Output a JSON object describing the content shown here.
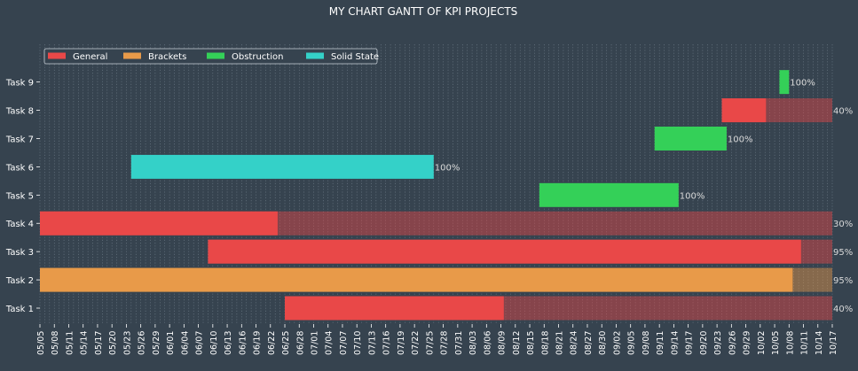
{
  "chart_data": {
    "type": "gantt",
    "title": "MY CHART GANTT OF KPI PROJECTS",
    "xlabel": "",
    "ylabel": "",
    "x_range": [
      "05/05",
      "10/17"
    ],
    "x_ticks": [
      "05/05",
      "05/08",
      "05/11",
      "05/14",
      "05/17",
      "05/20",
      "05/23",
      "05/26",
      "05/29",
      "06/01",
      "06/04",
      "06/07",
      "06/10",
      "06/13",
      "06/16",
      "06/19",
      "06/22",
      "06/25",
      "06/28",
      "07/01",
      "07/04",
      "07/07",
      "07/10",
      "07/13",
      "07/16",
      "07/19",
      "07/22",
      "07/25",
      "07/28",
      "07/31",
      "08/03",
      "08/06",
      "08/09",
      "08/12",
      "08/15",
      "08/18",
      "08/21",
      "08/24",
      "08/27",
      "08/30",
      "09/02",
      "09/05",
      "09/08",
      "09/11",
      "09/14",
      "09/17",
      "09/20",
      "09/23",
      "09/26",
      "09/29",
      "10/02",
      "10/05",
      "10/08",
      "10/11",
      "10/14",
      "10/17"
    ],
    "grid": true,
    "legend_position": "top-left",
    "legend": [
      {
        "name": "General",
        "color": "#e94848"
      },
      {
        "name": "Brackets",
        "color": "#e89a49"
      },
      {
        "name": "Obstruction",
        "color": "#34d058"
      },
      {
        "name": "Solid State",
        "color": "#34d1c8"
      }
    ],
    "tasks": [
      {
        "name": "Task 1",
        "department": "General",
        "start": "06/25",
        "end": "10/17",
        "completion": 40,
        "label": "40%"
      },
      {
        "name": "Task 2",
        "department": "Brackets",
        "start": "05/05",
        "end": "10/17",
        "completion": 95,
        "label": "95%"
      },
      {
        "name": "Task 3",
        "department": "General",
        "start": "06/09",
        "end": "10/17",
        "completion": 95,
        "label": "95%"
      },
      {
        "name": "Task 4",
        "department": "General",
        "start": "05/05",
        "end": "10/17",
        "completion": 30,
        "label": "30%"
      },
      {
        "name": "Task 5",
        "department": "Obstruction",
        "start": "08/17",
        "end": "09/15",
        "completion": 100,
        "label": "100%"
      },
      {
        "name": "Task 6",
        "department": "Solid State",
        "start": "05/24",
        "end": "07/26",
        "completion": 100,
        "label": "100%"
      },
      {
        "name": "Task 7",
        "department": "Obstruction",
        "start": "09/10",
        "end": "09/25",
        "completion": 100,
        "label": "100%"
      },
      {
        "name": "Task 8",
        "department": "General",
        "start": "09/24",
        "end": "10/17",
        "completion": 40,
        "label": "40%"
      },
      {
        "name": "Task 9",
        "department": "Obstruction",
        "start": "10/06",
        "end": "10/08",
        "completion": 100,
        "label": "100%"
      }
    ]
  },
  "colors": {
    "background": "#36434f",
    "grid": "#6f7d89",
    "text": "#ffffff",
    "remaining_overlay": "#8a3f45"
  }
}
